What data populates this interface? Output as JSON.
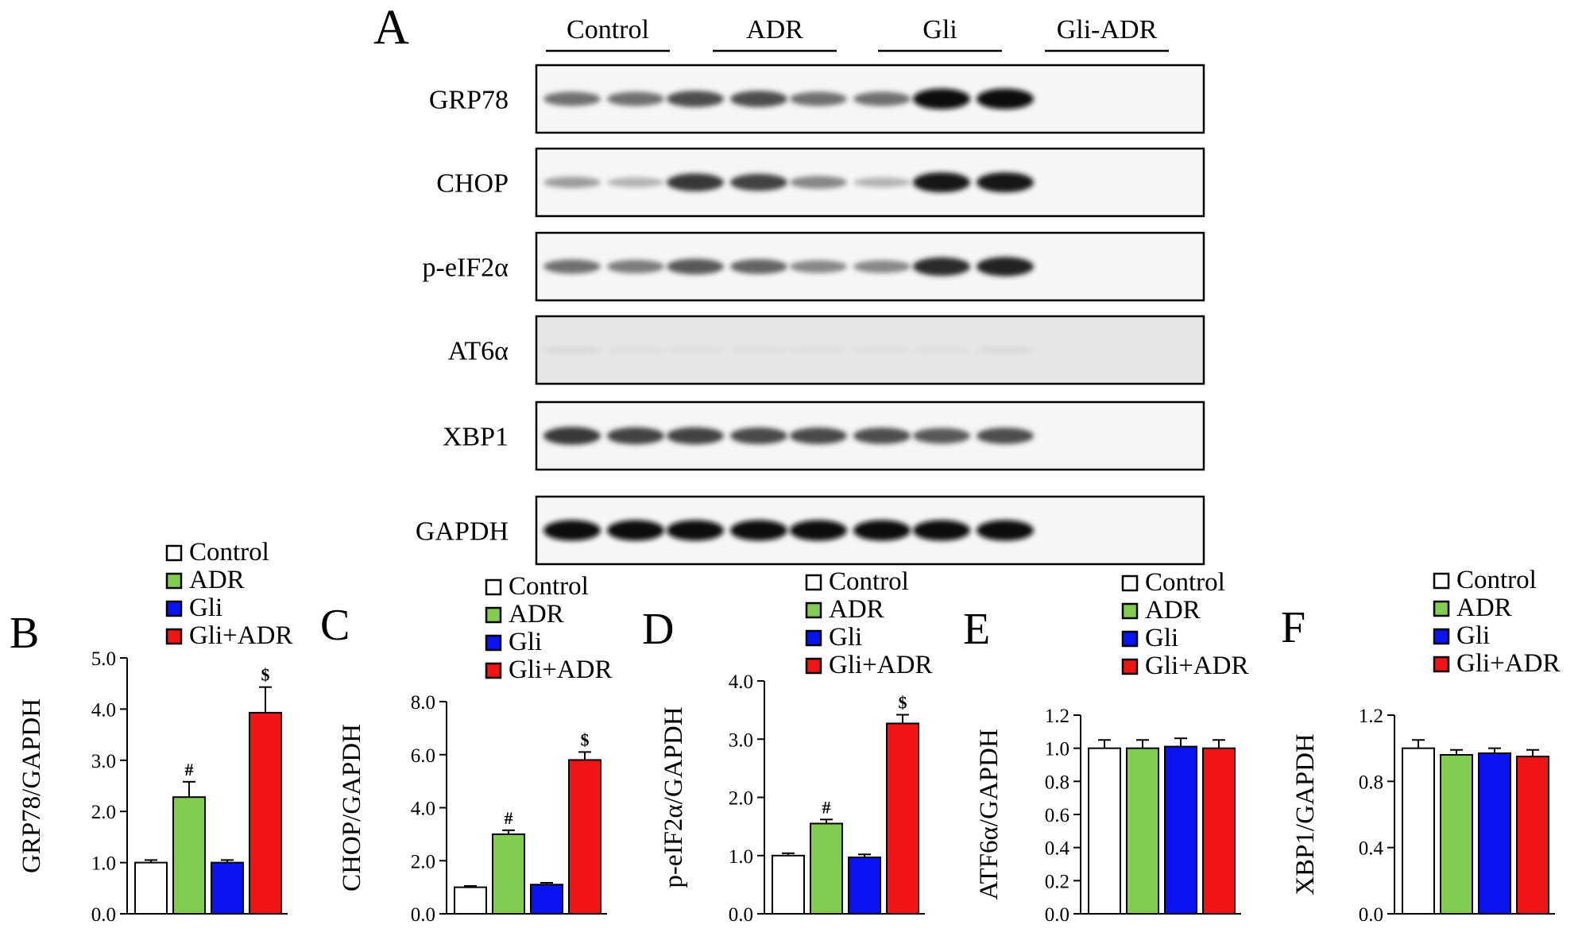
{
  "colors": {
    "control": "#ffffff",
    "adr": "#82cc52",
    "gli": "#0a14f0",
    "gli_adr": "#f01414",
    "outline": "#000000"
  },
  "panel_a": {
    "letter": "A",
    "groups": [
      "Control",
      "ADR",
      "Gli",
      "Gli-ADR"
    ],
    "blots": [
      {
        "label": "GRP78",
        "intensity": [
          0.55,
          0.55,
          0.7,
          0.7,
          0.55,
          0.55,
          1.0,
          1.0
        ]
      },
      {
        "label": "CHOP",
        "intensity": [
          0.35,
          0.25,
          0.8,
          0.75,
          0.45,
          0.25,
          0.95,
          0.95
        ]
      },
      {
        "label": "p-eIF2α",
        "intensity": [
          0.55,
          0.5,
          0.65,
          0.6,
          0.45,
          0.45,
          0.85,
          0.9
        ]
      },
      {
        "label": "AT6α",
        "intensity": [
          0.08,
          0.06,
          0.06,
          0.06,
          0.06,
          0.06,
          0.06,
          0.08
        ]
      },
      {
        "label": "XBP1",
        "intensity": [
          0.8,
          0.75,
          0.75,
          0.72,
          0.72,
          0.7,
          0.65,
          0.7
        ]
      },
      {
        "label": "GAPDH",
        "intensity": [
          1.0,
          1.0,
          1.0,
          1.0,
          1.0,
          1.0,
          1.0,
          1.0
        ]
      }
    ]
  },
  "chart_data": [
    {
      "type": "bar",
      "letter": "B",
      "categories": [
        "Control",
        "ADR",
        "Gli",
        "Gli+ADR"
      ],
      "values": [
        1.0,
        2.28,
        1.0,
        3.93
      ],
      "errors": [
        0.05,
        0.3,
        0.05,
        0.5
      ],
      "marks": [
        "",
        "#",
        "",
        "$"
      ],
      "ylabel": "GRP78/GAPDH",
      "ylim": [
        0,
        5
      ],
      "yticks": [
        0,
        1,
        2,
        3,
        4,
        5
      ],
      "yticklabels": [
        "0.0",
        "1.0",
        "2.0",
        "3.0",
        "4.0",
        "5.0"
      ],
      "legend": [
        "Control",
        "ADR",
        "Gli",
        "Gli+ADR"
      ]
    },
    {
      "type": "bar",
      "letter": "C",
      "categories": [
        "Control",
        "ADR",
        "Gli",
        "Gli+ADR"
      ],
      "values": [
        1.0,
        3.0,
        1.1,
        5.8
      ],
      "errors": [
        0.05,
        0.15,
        0.07,
        0.3
      ],
      "marks": [
        "",
        "#",
        "",
        "$"
      ],
      "ylabel": "CHOP/GAPDH",
      "ylim": [
        0,
        8
      ],
      "yticks": [
        0,
        2,
        4,
        6,
        8
      ],
      "yticklabels": [
        "0.0",
        "2.0",
        "4.0",
        "6.0",
        "8.0"
      ],
      "legend": [
        "Control",
        "ADR",
        "Gli",
        "Gli+ADR"
      ]
    },
    {
      "type": "bar",
      "letter": "D",
      "categories": [
        "Control",
        "ADR",
        "Gli",
        "Gli+ADR"
      ],
      "values": [
        1.0,
        1.55,
        0.97,
        3.27
      ],
      "errors": [
        0.04,
        0.07,
        0.05,
        0.15
      ],
      "marks": [
        "",
        "#",
        "",
        "$"
      ],
      "ylabel": "p-eIF2α/GAPDH",
      "ylim": [
        0,
        4
      ],
      "yticks": [
        0,
        1,
        2,
        3,
        4
      ],
      "yticklabels": [
        "0.0",
        "1.0",
        "2.0",
        "3.0",
        "4.0"
      ],
      "legend": [
        "Control",
        "ADR",
        "Gli",
        "Gli+ADR"
      ]
    },
    {
      "type": "bar",
      "letter": "E",
      "categories": [
        "Control",
        "ADR",
        "Gli",
        "Gli+ADR"
      ],
      "values": [
        1.0,
        1.0,
        1.01,
        1.0
      ],
      "errors": [
        0.05,
        0.05,
        0.05,
        0.05
      ],
      "marks": [
        "",
        "",
        "",
        ""
      ],
      "ylabel": "ATF6α/GAPDH",
      "ylim": [
        0,
        1.2
      ],
      "yticks": [
        0,
        0.2,
        0.4,
        0.6,
        0.8,
        1.0,
        1.2
      ],
      "yticklabels": [
        "0.0",
        "0.2",
        "0.4",
        "0.6",
        "0.8",
        "1.0",
        "1.2"
      ],
      "legend": [
        "Control",
        "ADR",
        "Gli",
        "Gli+ADR"
      ]
    },
    {
      "type": "bar",
      "letter": "F",
      "categories": [
        "Control",
        "ADR",
        "Gli",
        "Gli+ADR"
      ],
      "values": [
        1.0,
        0.96,
        0.97,
        0.95
      ],
      "errors": [
        0.05,
        0.03,
        0.03,
        0.04
      ],
      "marks": [
        "",
        "",
        "",
        ""
      ],
      "ylabel": "XBP1/GAPDH",
      "ylim": [
        0,
        1.2
      ],
      "yticks": [
        0,
        0.4,
        0.8,
        1.2
      ],
      "yticklabels": [
        "0.0",
        "0.4",
        "0.8",
        "1.2"
      ],
      "legend": [
        "Control",
        "ADR",
        "Gli",
        "Gli+ADR"
      ]
    }
  ]
}
